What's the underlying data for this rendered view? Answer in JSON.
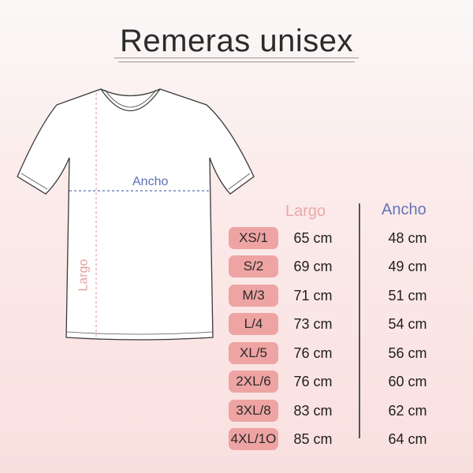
{
  "title": "Remeras unisex",
  "diagram": {
    "width_label": "Ancho",
    "length_label": "Largo"
  },
  "table": {
    "headers": {
      "largo": "Largo",
      "ancho": "Ancho"
    },
    "rows": [
      {
        "size": "XS/1",
        "largo": "65 cm",
        "ancho": "48 cm"
      },
      {
        "size": "S/2",
        "largo": "69 cm",
        "ancho": "49 cm"
      },
      {
        "size": "M/3",
        "largo": "71 cm",
        "ancho": "51 cm"
      },
      {
        "size": "L/4",
        "largo": "73 cm",
        "ancho": "54 cm"
      },
      {
        "size": "XL/5",
        "largo": "76 cm",
        "ancho": "56 cm"
      },
      {
        "size": "2XL/6",
        "largo": "76 cm",
        "ancho": "60 cm"
      },
      {
        "size": "3XL/8",
        "largo": "83 cm",
        "ancho": "62 cm"
      },
      {
        "size": "4XL/1O",
        "largo": "85 cm",
        "ancho": "64 cm"
      }
    ]
  },
  "colors": {
    "pill": "#eea4a3",
    "largo": "#eba9a8",
    "ancho": "#6674b8"
  }
}
